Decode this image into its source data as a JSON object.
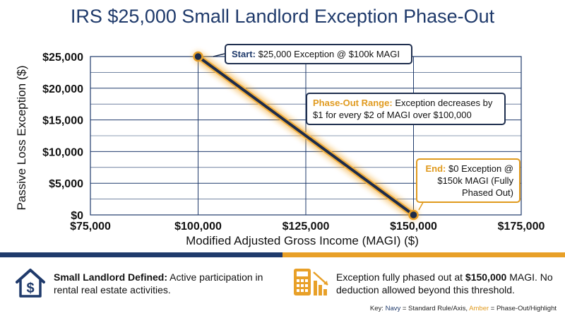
{
  "chart_data": {
    "type": "line",
    "title": "IRS $25,000 Small Landlord Exception Phase-Out",
    "xlabel": "Modified Adjusted Gross Income (MAGI) ($)",
    "ylabel": "Passive Loss Exception ($)",
    "xlim": [
      75000,
      175000
    ],
    "ylim": [
      0,
      25000
    ],
    "x_ticks": [
      75000,
      100000,
      125000,
      150000,
      175000
    ],
    "x_tick_labels": [
      "$75,000",
      "$100,000",
      "$125,000",
      "$150,000",
      "$175,000"
    ],
    "y_ticks": [
      0,
      5000,
      10000,
      15000,
      20000,
      25000
    ],
    "y_tick_labels": [
      "$0",
      "$5,000",
      "$10,000",
      "$15,000",
      "$20,000",
      "$25,000"
    ],
    "grid": true,
    "series": [
      {
        "x": [
          100000,
          150000
        ],
        "y": [
          25000,
          0
        ]
      }
    ],
    "annotations": {
      "start": {
        "label": "Start:",
        "text": "$25,000 Exception @ $100k MAGI",
        "x": 100000,
        "y": 25000
      },
      "phase": {
        "label": "Phase-Out Range:",
        "text": "Exception decreases by $1 for every $2 of MAGI over $100,000"
      },
      "end": {
        "label": "End:",
        "text": "$0 Exception @ $150k MAGI (Fully Phased Out)",
        "x": 150000,
        "y": 0
      }
    }
  },
  "footer": {
    "left_label": "Small Landlord Defined:",
    "left_text": "Active participation in rental real estate activities.",
    "right_text_pre": "Exception fully phased out at",
    "right_bold": "$150,000",
    "right_text_post": "MAGI. No deduction allowed beyond this threshold.",
    "key_prefix": "Key:",
    "key_navy": "Navy",
    "key_navy_desc": "= Standard Rule/Axis,",
    "key_amber": "Amber",
    "key_amber_desc": "= Phase-Out/Highlight"
  },
  "colors": {
    "navy": "#1f3a6b",
    "amber": "#e8a028",
    "line": "#1c2b4a"
  },
  "icons": {
    "left": "house-dollar-icon",
    "right": "calculator-chart-icon"
  }
}
